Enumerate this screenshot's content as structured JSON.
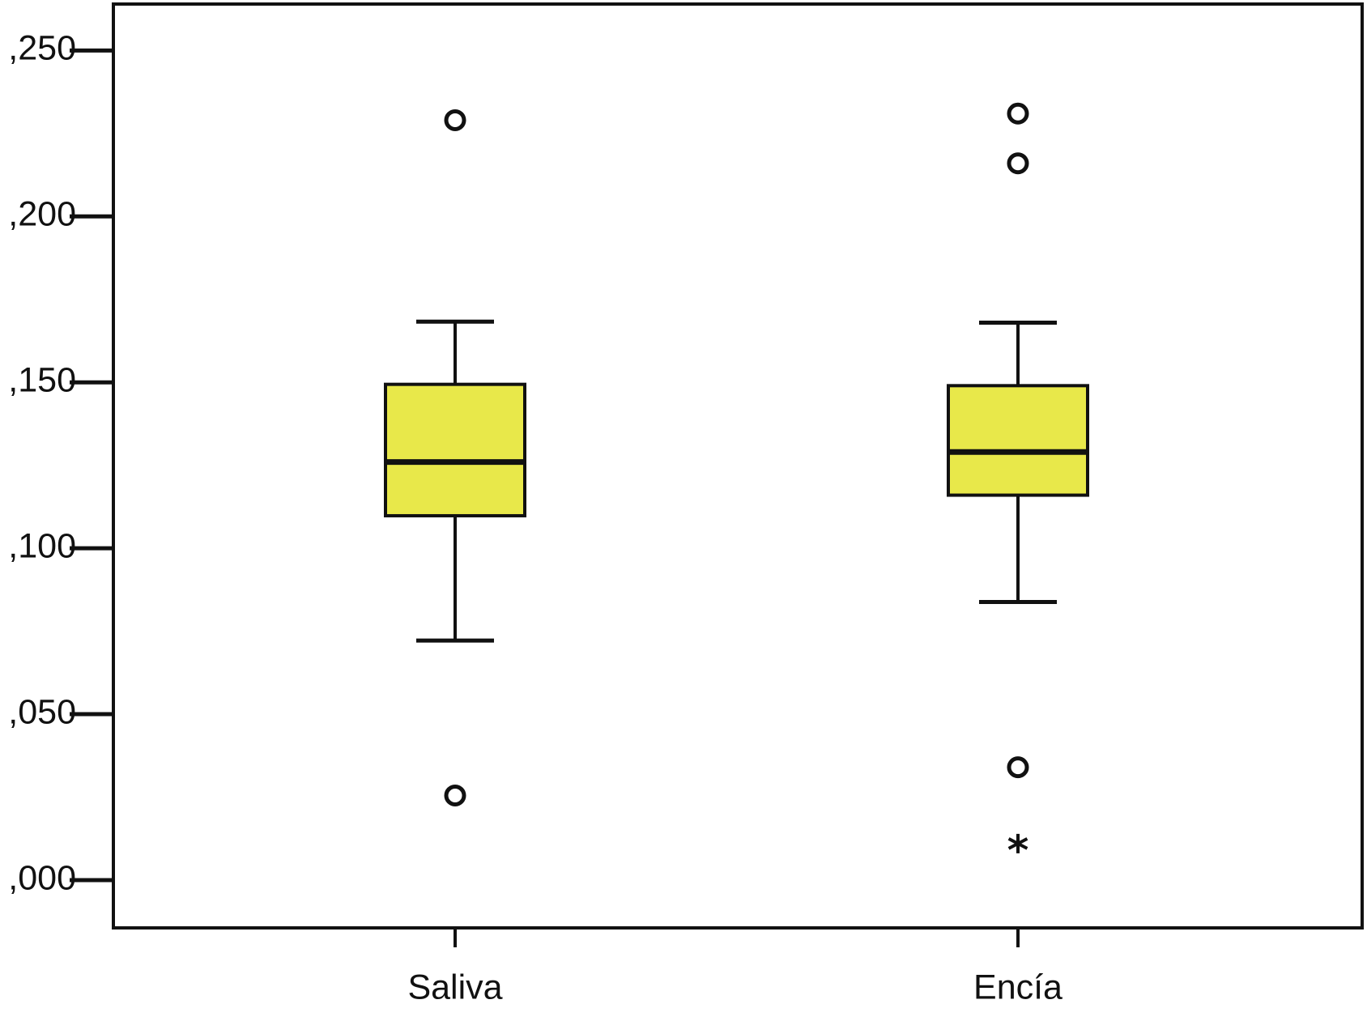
{
  "chart_data": {
    "type": "box",
    "categories": [
      "Saliva",
      "Encía"
    ],
    "color": "#e8e84a",
    "boxes": [
      {
        "whisker_low": 0.0722,
        "q1": 0.1098,
        "median": 0.126,
        "q3": 0.1494,
        "whisker_high": 0.1683,
        "outliers": [
          0.229,
          0.0255
        ],
        "extremes": []
      },
      {
        "whisker_low": 0.0838,
        "q1": 0.116,
        "median": 0.129,
        "q3": 0.149,
        "whisker_high": 0.168,
        "outliers": [
          0.231,
          0.216,
          0.034
        ],
        "extremes": [
          0.011
        ]
      }
    ],
    "ylim": [
      -0.0144,
      0.264
    ],
    "yticks": [
      {
        "value": 0,
        "label": ",000"
      },
      {
        "value": 0.05,
        "label": ",050"
      },
      {
        "value": 0.1,
        "label": ",100"
      },
      {
        "value": 0.15,
        "label": ",150"
      },
      {
        "value": 0.2,
        "label": ",200"
      },
      {
        "value": 0.25,
        "label": ",250"
      }
    ]
  }
}
